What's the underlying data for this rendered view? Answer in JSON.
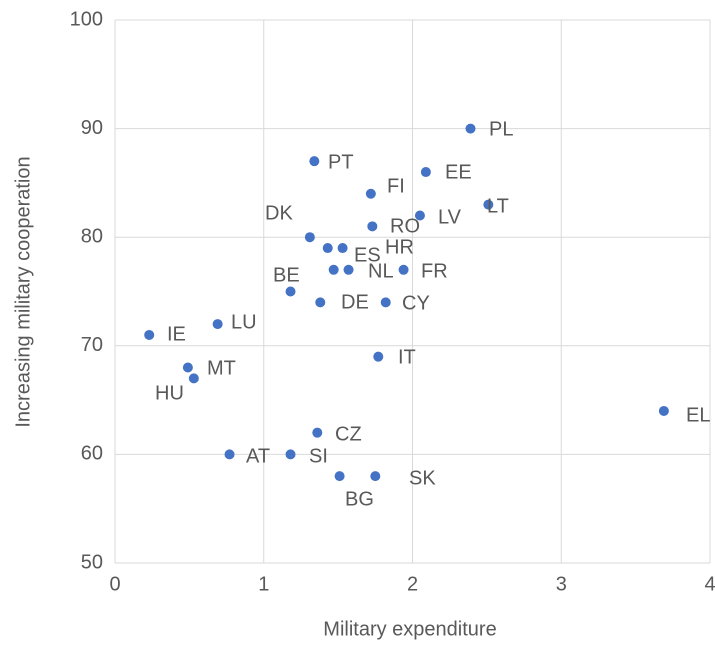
{
  "chart_data": {
    "type": "scatter",
    "x_label": "Military expenditure",
    "y_label": "Increasing military cooperation",
    "color": "#4472c4",
    "grid": true,
    "xlim": [
      0,
      4
    ],
    "xticks": [
      0,
      1,
      2,
      3,
      4
    ],
    "ylim": [
      50,
      100
    ],
    "yticks": [
      50,
      60,
      70,
      80,
      90,
      100
    ],
    "labels": [
      "PL",
      "PT",
      "EE",
      "FI",
      "LT",
      "LV",
      "RO",
      "DK",
      "ES",
      "HR",
      null,
      "NL",
      "FR",
      "BE",
      "DE",
      "CY",
      "IE",
      "LU",
      "IT",
      "MT",
      "HU",
      "EL",
      "CZ",
      "AT",
      "SI",
      "BG",
      "SK"
    ],
    "x": [
      2.39,
      1.34,
      2.09,
      1.72,
      2.51,
      2.05,
      1.73,
      1.31,
      1.43,
      1.53,
      1.47,
      1.57,
      1.94,
      1.18,
      1.38,
      1.82,
      0.23,
      0.69,
      1.77,
      0.49,
      0.53,
      3.69,
      1.36,
      0.77,
      1.18,
      1.51,
      1.75
    ],
    "values": [
      90,
      87,
      86,
      84,
      83,
      82,
      81,
      80,
      79,
      79,
      77,
      77,
      77,
      75,
      74,
      74,
      71,
      72,
      69,
      68,
      67,
      64,
      62,
      60,
      60,
      58,
      58
    ]
  }
}
